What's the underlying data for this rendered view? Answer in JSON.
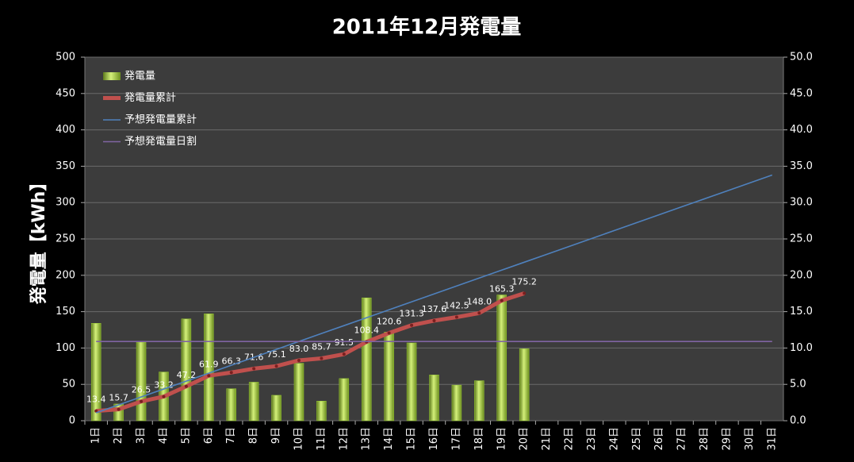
{
  "chart_data": {
    "type": "bar",
    "title": "2011年12月発電量",
    "y_label": "発電量【kWh】",
    "categories": [
      "1日",
      "2日",
      "3日",
      "4日",
      "5日",
      "6日",
      "7日",
      "8日",
      "9日",
      "10日",
      "11日",
      "12日",
      "13日",
      "14日",
      "15日",
      "16日",
      "17日",
      "18日",
      "19日",
      "20日",
      "21日",
      "22日",
      "23日",
      "24日",
      "25日",
      "26日",
      "27日",
      "28日",
      "29日",
      "30日",
      "31日"
    ],
    "ylim": [
      0,
      500
    ],
    "yticks": [
      0,
      50,
      100,
      150,
      200,
      250,
      300,
      350,
      400,
      450,
      500
    ],
    "y2lim": [
      0,
      50
    ],
    "y2ticks": [
      {
        "value": 0,
        "label": "0.0"
      },
      {
        "value": 5,
        "label": "5.0"
      },
      {
        "value": 10,
        "label": "10.0"
      },
      {
        "value": 15,
        "label": "15.0"
      },
      {
        "value": 20,
        "label": "20.0"
      },
      {
        "value": 25,
        "label": "25.0"
      },
      {
        "value": 30,
        "label": "30.0"
      },
      {
        "value": 35,
        "label": "35.0"
      },
      {
        "value": 40,
        "label": "40.0"
      },
      {
        "value": 45,
        "label": "45.0"
      },
      {
        "value": 50,
        "label": "50.0"
      }
    ],
    "grid": true,
    "legend": "top-left",
    "series": [
      {
        "name": "発電量",
        "kind": "bar",
        "axis": "y2",
        "color": "#9acd32",
        "values": [
          13.4,
          2.3,
          10.8,
          6.7,
          14.0,
          14.7,
          4.4,
          5.3,
          3.5,
          7.9,
          2.7,
          5.8,
          16.9,
          12.2,
          10.7,
          6.3,
          4.9,
          5.5,
          17.3,
          9.9,
          null,
          null,
          null,
          null,
          null,
          null,
          null,
          null,
          null,
          null,
          null
        ]
      },
      {
        "name": "発電量累計",
        "kind": "line",
        "color": "#c0504d",
        "values": [
          13.4,
          15.7,
          26.5,
          33.2,
          47.2,
          61.9,
          66.3,
          71.6,
          75.1,
          83.0,
          85.7,
          91.5,
          108.4,
          120.6,
          131.3,
          137.6,
          142.5,
          148.0,
          165.3,
          175.2,
          null,
          null,
          null,
          null,
          null,
          null,
          null,
          null,
          null,
          null,
          null
        ],
        "value_labels": [
          "13.4",
          "15.7",
          "26.5",
          "33.2",
          "47.2",
          "61.9",
          "66.3",
          "71.6",
          "75.1",
          "83.0",
          "85.7",
          "91.5",
          "108.4",
          "120.6",
          "131.3",
          "137.6",
          "142.5",
          "148.0",
          "165.3",
          "175.2",
          null,
          null,
          null,
          null,
          null,
          null,
          null,
          null,
          null,
          null,
          null
        ]
      },
      {
        "name": "予想発電量累計",
        "kind": "line",
        "color": "#4f81bd",
        "values": [
          10.9,
          21.8,
          32.7,
          43.6,
          54.5,
          65.4,
          76.3,
          87.2,
          98.1,
          109,
          119.9,
          130.8,
          141.7,
          152.6,
          163.5,
          174.4,
          185.3,
          196.2,
          207.1,
          218,
          228.9,
          239.8,
          250.7,
          261.6,
          272.5,
          283.4,
          294.3,
          305.2,
          316.1,
          327,
          337.9
        ]
      },
      {
        "name": "予想発電量日割",
        "kind": "line",
        "axis": "y2",
        "color": "#8064a2",
        "values": [
          10.9,
          10.9,
          10.9,
          10.9,
          10.9,
          10.9,
          10.9,
          10.9,
          10.9,
          10.9,
          10.9,
          10.9,
          10.9,
          10.9,
          10.9,
          10.9,
          10.9,
          10.9,
          10.9,
          10.9,
          10.9,
          10.9,
          10.9,
          10.9,
          10.9,
          10.9,
          10.9,
          10.9,
          10.9,
          10.9,
          10.9
        ]
      }
    ]
  }
}
